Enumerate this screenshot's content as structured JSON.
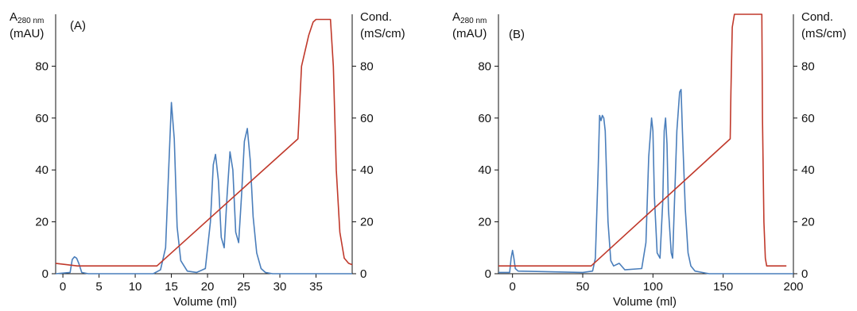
{
  "chart_data": [
    {
      "type": "line",
      "panel_label": "(A)",
      "xlabel": "Volume (ml)",
      "ylabel_left": {
        "main": "A",
        "sub": "280 nm",
        "unit": "(mAU)"
      },
      "ylabel_right": {
        "main": "Cond.",
        "unit": "(mS/cm)"
      },
      "xlim": [
        -1,
        40
      ],
      "ylim_left": [
        0,
        100
      ],
      "ylim_right": [
        0,
        100
      ],
      "x_ticks": [
        0,
        5,
        10,
        15,
        20,
        25,
        30,
        35
      ],
      "y_ticks_left": [
        0,
        20,
        40,
        60,
        80
      ],
      "y_ticks_right": [
        0,
        20,
        40,
        60,
        80
      ],
      "colors": {
        "absorbance": "#4a7ebb",
        "conductivity": "#c0392b"
      },
      "series": [
        {
          "axis": "left",
          "color": "#4a7ebb",
          "x": [
            -1,
            1.0,
            1.3,
            1.6,
            1.9,
            2.2,
            2.6,
            3.5,
            12.5,
            13.5,
            14.2,
            14.6,
            15.0,
            15.4,
            15.8,
            16.3,
            17.2,
            18.5,
            19.7,
            20.4,
            20.8,
            21.1,
            21.5,
            21.9,
            22.3,
            22.7,
            23.1,
            23.5,
            23.9,
            24.3,
            24.7,
            25.1,
            25.5,
            25.9,
            26.3,
            26.8,
            27.4,
            28.0,
            29.0,
            40
          ],
          "y": [
            0,
            0.5,
            5.5,
            6.5,
            6,
            4,
            0.5,
            0,
            0,
            1.5,
            10,
            38,
            66,
            52,
            18,
            5,
            1,
            0.5,
            2,
            20,
            42,
            46,
            36,
            14,
            10,
            30,
            47,
            40,
            16,
            12,
            30,
            51,
            56,
            44,
            22,
            8,
            2,
            0.5,
            0,
            0
          ]
        },
        {
          "axis": "right",
          "color": "#c0392b",
          "x": [
            -1,
            2,
            13,
            32.5,
            33,
            34,
            34.6,
            35,
            35.5,
            36,
            37,
            37.4,
            37.8,
            38.3,
            38.9,
            39.5,
            40
          ],
          "y": [
            4,
            3,
            3,
            52,
            80,
            92,
            97,
            98,
            98,
            98,
            98,
            80,
            40,
            16,
            6,
            4,
            3.5
          ]
        }
      ]
    },
    {
      "type": "line",
      "panel_label": "(B)",
      "xlabel": "Volume (ml)",
      "ylabel_left": {
        "main": "A",
        "sub": "280 nm",
        "unit": "(mAU)"
      },
      "ylabel_right": {
        "main": "Cond.",
        "unit": "(mS/cm)"
      },
      "xlim": [
        -10,
        200
      ],
      "ylim_left": [
        0,
        100
      ],
      "ylim_right": [
        0,
        100
      ],
      "x_ticks": [
        0,
        50,
        100,
        150,
        200
      ],
      "y_ticks_left": [
        0,
        20,
        40,
        60,
        80
      ],
      "y_ticks_right": [
        0,
        20,
        40,
        60,
        80
      ],
      "colors": {
        "absorbance": "#4a7ebb",
        "conductivity": "#c0392b"
      },
      "series": [
        {
          "axis": "left",
          "color": "#4a7ebb",
          "x": [
            -10,
            -2,
            -1,
            0,
            1,
            2,
            4,
            50,
            57,
            59,
            61,
            62,
            63,
            64,
            65,
            66,
            68,
            70,
            72,
            76,
            80,
            92,
            95,
            97,
            99,
            100,
            101,
            103,
            105,
            107,
            108,
            109,
            110,
            111,
            113,
            114,
            115,
            117,
            119,
            120,
            121,
            123,
            125,
            127,
            130,
            135,
            140,
            200
          ],
          "y": [
            0.5,
            0.5,
            6,
            9,
            6,
            2,
            1,
            0.5,
            1,
            6,
            40,
            61,
            59,
            61,
            60,
            55,
            20,
            5,
            3,
            4,
            1.5,
            2,
            12,
            45,
            60,
            55,
            30,
            8,
            6,
            28,
            55,
            60,
            50,
            25,
            8,
            6,
            22,
            55,
            70,
            71,
            55,
            25,
            8,
            3,
            1,
            0.5,
            0,
            0
          ]
        },
        {
          "axis": "right",
          "color": "#c0392b",
          "x": [
            -10,
            56,
            155,
            155.5,
            156.5,
            158,
            176,
            177.5,
            178,
            179,
            180,
            181,
            195
          ],
          "y": [
            3,
            3,
            52,
            70,
            95,
            100,
            100,
            100,
            60,
            20,
            6,
            3,
            3
          ]
        }
      ]
    }
  ]
}
